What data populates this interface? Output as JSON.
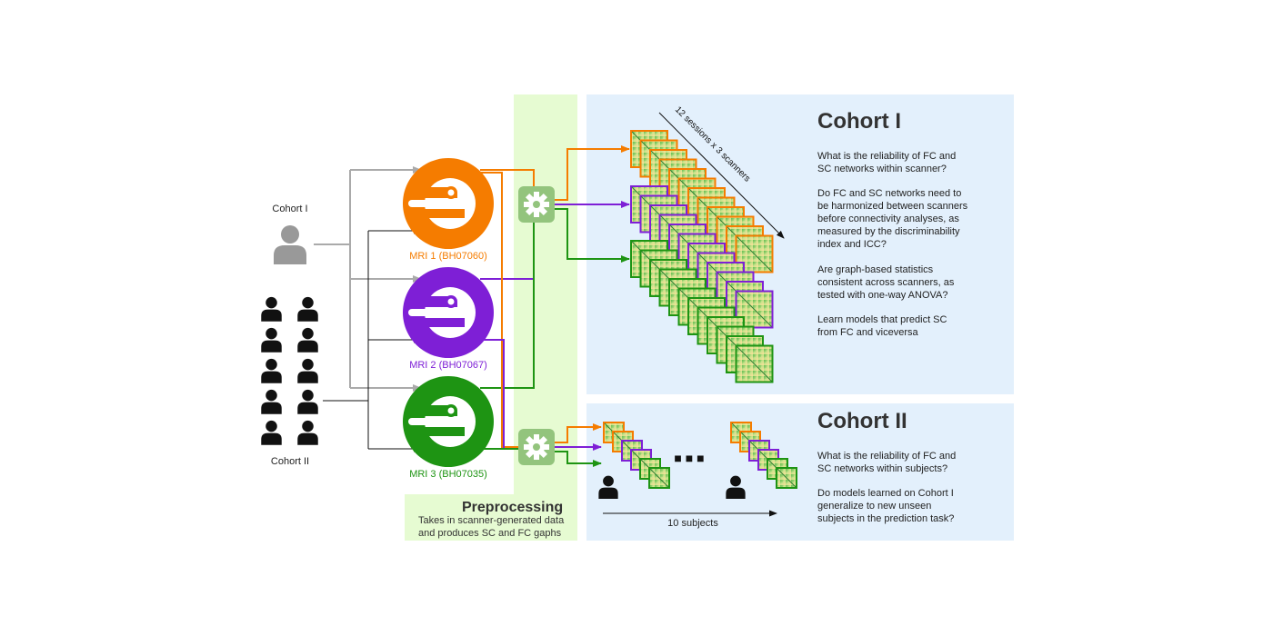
{
  "cohorts": {
    "cohort1_label": "Cohort I",
    "cohort2_label": "Cohort II"
  },
  "scanners": [
    {
      "label": "MRI 1 (BH07060)",
      "color": "#f57c00"
    },
    {
      "label": "MRI 2 (BH07067)",
      "color": "#7e1fd6"
    },
    {
      "label": "MRI 3 (BH07035)",
      "color": "#1e9413"
    }
  ],
  "preprocessing": {
    "title": "Preprocessing",
    "description_line1": "Takes in scanner-generated data",
    "description_line2": "and produces SC and FC gaphs"
  },
  "cohort1_panel": {
    "title": "Cohort I",
    "stack_label": "12 sessions x 3 scanners",
    "questions": [
      [
        "What is the reliability of FC and",
        "SC networks within scanner?"
      ],
      [
        "Do FC and SC networks need to",
        "be harmonized between scanners",
        "before connectivity analyses, as",
        "measured by the discriminability",
        "index and ICC?"
      ],
      [
        "Are graph-based statistics",
        "consistent across scanners, as",
        "tested with one-way ANOVA?"
      ],
      [
        "Learn models that predict SC",
        "from FC and viceversa"
      ]
    ]
  },
  "cohort2_panel": {
    "title": "Cohort II",
    "subjects_label": "10 subjects",
    "ellipsis": "■ ■ ■",
    "questions": [
      [
        "What is the reliability of FC and",
        "SC networks within subjects?"
      ],
      [
        "Do models learned on Cohort I",
        "generalize to new unseen",
        "subjects in the prediction task?"
      ]
    ]
  },
  "colors": {
    "orange": "#f57c00",
    "purple": "#7e1fd6",
    "green": "#1e9413",
    "gray": "#aaaaaa",
    "preproc_bg": "#e6fbd2",
    "panel_bg": "#e3f0fc",
    "gear_bg": "#93c47d"
  }
}
